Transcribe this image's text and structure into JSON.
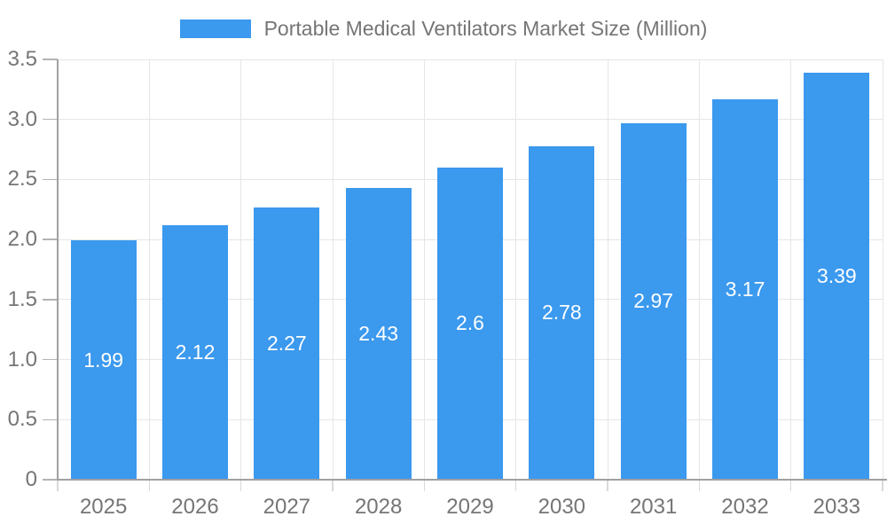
{
  "chart_data": {
    "type": "bar",
    "title": "Portable Medical Ventilators Market Size (Million)",
    "legend_position": "top",
    "categories": [
      "2025",
      "2026",
      "2027",
      "2028",
      "2029",
      "2030",
      "2031",
      "2032",
      "2033"
    ],
    "values": [
      1.99,
      2.12,
      2.27,
      2.43,
      2.6,
      2.78,
      2.97,
      3.17,
      3.39
    ],
    "value_labels": [
      "1.99",
      "2.12",
      "2.27",
      "2.43",
      "2.6",
      "2.78",
      "2.97",
      "3.17",
      "3.39"
    ],
    "xlabel": "",
    "ylabel": "",
    "ylim": [
      0,
      3.5
    ],
    "y_tick_step": 0.5,
    "y_tick_labels": [
      "0",
      "0.5",
      "1.0",
      "1.5",
      "2.0",
      "2.5",
      "3.0",
      "3.5"
    ],
    "grid": true,
    "colors": {
      "bar": "#3b99ee",
      "bar_label": "#ffffff",
      "axis_text": "#757575",
      "legend_text": "#757575",
      "gridline": "#e6e6e6",
      "axis_line": "#a0a0a0",
      "y_tick": "#b3b3b3",
      "x_tick": "#d9d9d9",
      "background": "#ffffff"
    }
  }
}
